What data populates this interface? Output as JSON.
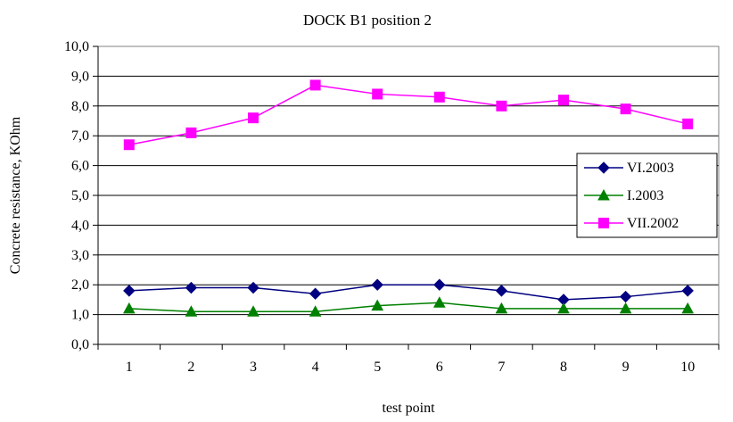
{
  "chart_data": {
    "type": "line",
    "title": "DOCK B1 position 2",
    "xlabel": "test point",
    "ylabel": "Concrete resistance,  KOhm",
    "categories": [
      "1",
      "2",
      "3",
      "4",
      "5",
      "6",
      "7",
      "8",
      "9",
      "10"
    ],
    "ylim": [
      0,
      10
    ],
    "ytick_labels": [
      "0,0",
      "1,0",
      "2,0",
      "3,0",
      "4,0",
      "5,0",
      "6,0",
      "7,0",
      "8,0",
      "9,0",
      "10,0"
    ],
    "grid": "horizontal",
    "legend_position": "right",
    "series": [
      {
        "name": "VI.2003",
        "marker": "diamond",
        "color": "#000080",
        "values": [
          1.8,
          1.9,
          1.9,
          1.7,
          2.0,
          2.0,
          1.8,
          1.5,
          1.6,
          1.8
        ]
      },
      {
        "name": "I.2003",
        "marker": "triangle",
        "color": "#008000",
        "values": [
          1.2,
          1.1,
          1.1,
          1.1,
          1.3,
          1.4,
          1.2,
          1.2,
          1.2,
          1.2
        ]
      },
      {
        "name": "VII.2002",
        "marker": "square",
        "color": "#FF00FF",
        "values": [
          6.7,
          7.1,
          7.6,
          8.7,
          8.4,
          8.3,
          8.0,
          8.2,
          7.9,
          7.4
        ]
      }
    ]
  }
}
